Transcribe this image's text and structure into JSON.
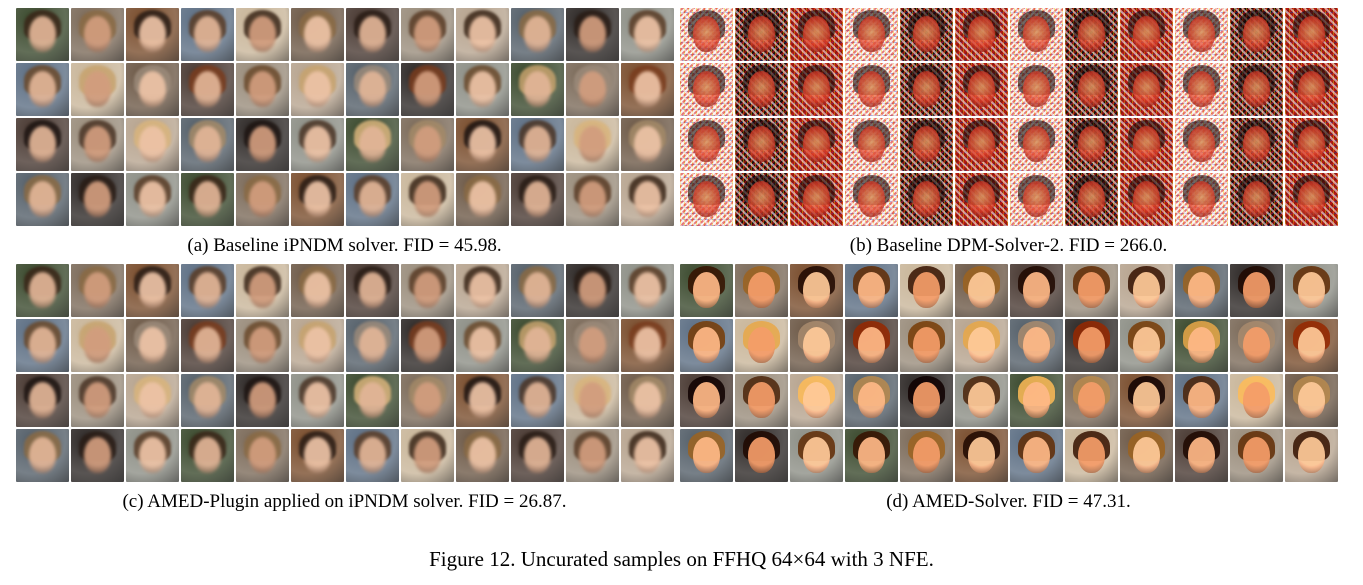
{
  "figure": {
    "caption": "Figure 12. Uncurated samples on FFHQ 64×64 with 3 NFE."
  },
  "panels": [
    {
      "id": "a",
      "caption": "(a) Baseline iPNDM solver. FID = 45.98.",
      "style": "soft"
    },
    {
      "id": "b",
      "caption": "(b) Baseline DPM-Solver-2. FID = 266.0.",
      "style": "noisy"
    },
    {
      "id": "c",
      "caption": "(c) AMED-Plugin applied on iPNDM solver. FID = 26.87.",
      "style": "soft"
    },
    {
      "id": "d",
      "caption": "(d) AMED-Solver. FID = 47.31.",
      "style": "vivid"
    }
  ],
  "grid": {
    "rows": 4,
    "cols": 12
  },
  "colors": {
    "background_palette": [
      "#3b4a2e",
      "#6e5a48",
      "#2f2a28",
      "#5d6f84",
      "#b7a48f",
      "#7c6b5a",
      "#4a3a33",
      "#8d8f86",
      "#c9b69a",
      "#55606a",
      "#7a4e2e",
      "#9a8d7c"
    ],
    "skin_palette": [
      "#e2b597",
      "#c99476",
      "#d8a98a",
      "#b07a5c",
      "#edc3a6",
      "#c8987c",
      "#a8704f",
      "#e9c0a0",
      "#d29d7e",
      "#bf8768",
      "#f0cdb2",
      "#b98463"
    ],
    "hair_palette": [
      "#3a2618",
      "#6b4a2c",
      "#1e1512",
      "#8a6a44",
      "#c7a36e",
      "#4b3526",
      "#2a1d16",
      "#9b8a7a",
      "#d9b47c",
      "#5a3c26",
      "#7a3c1e",
      "#a48a68"
    ]
  }
}
